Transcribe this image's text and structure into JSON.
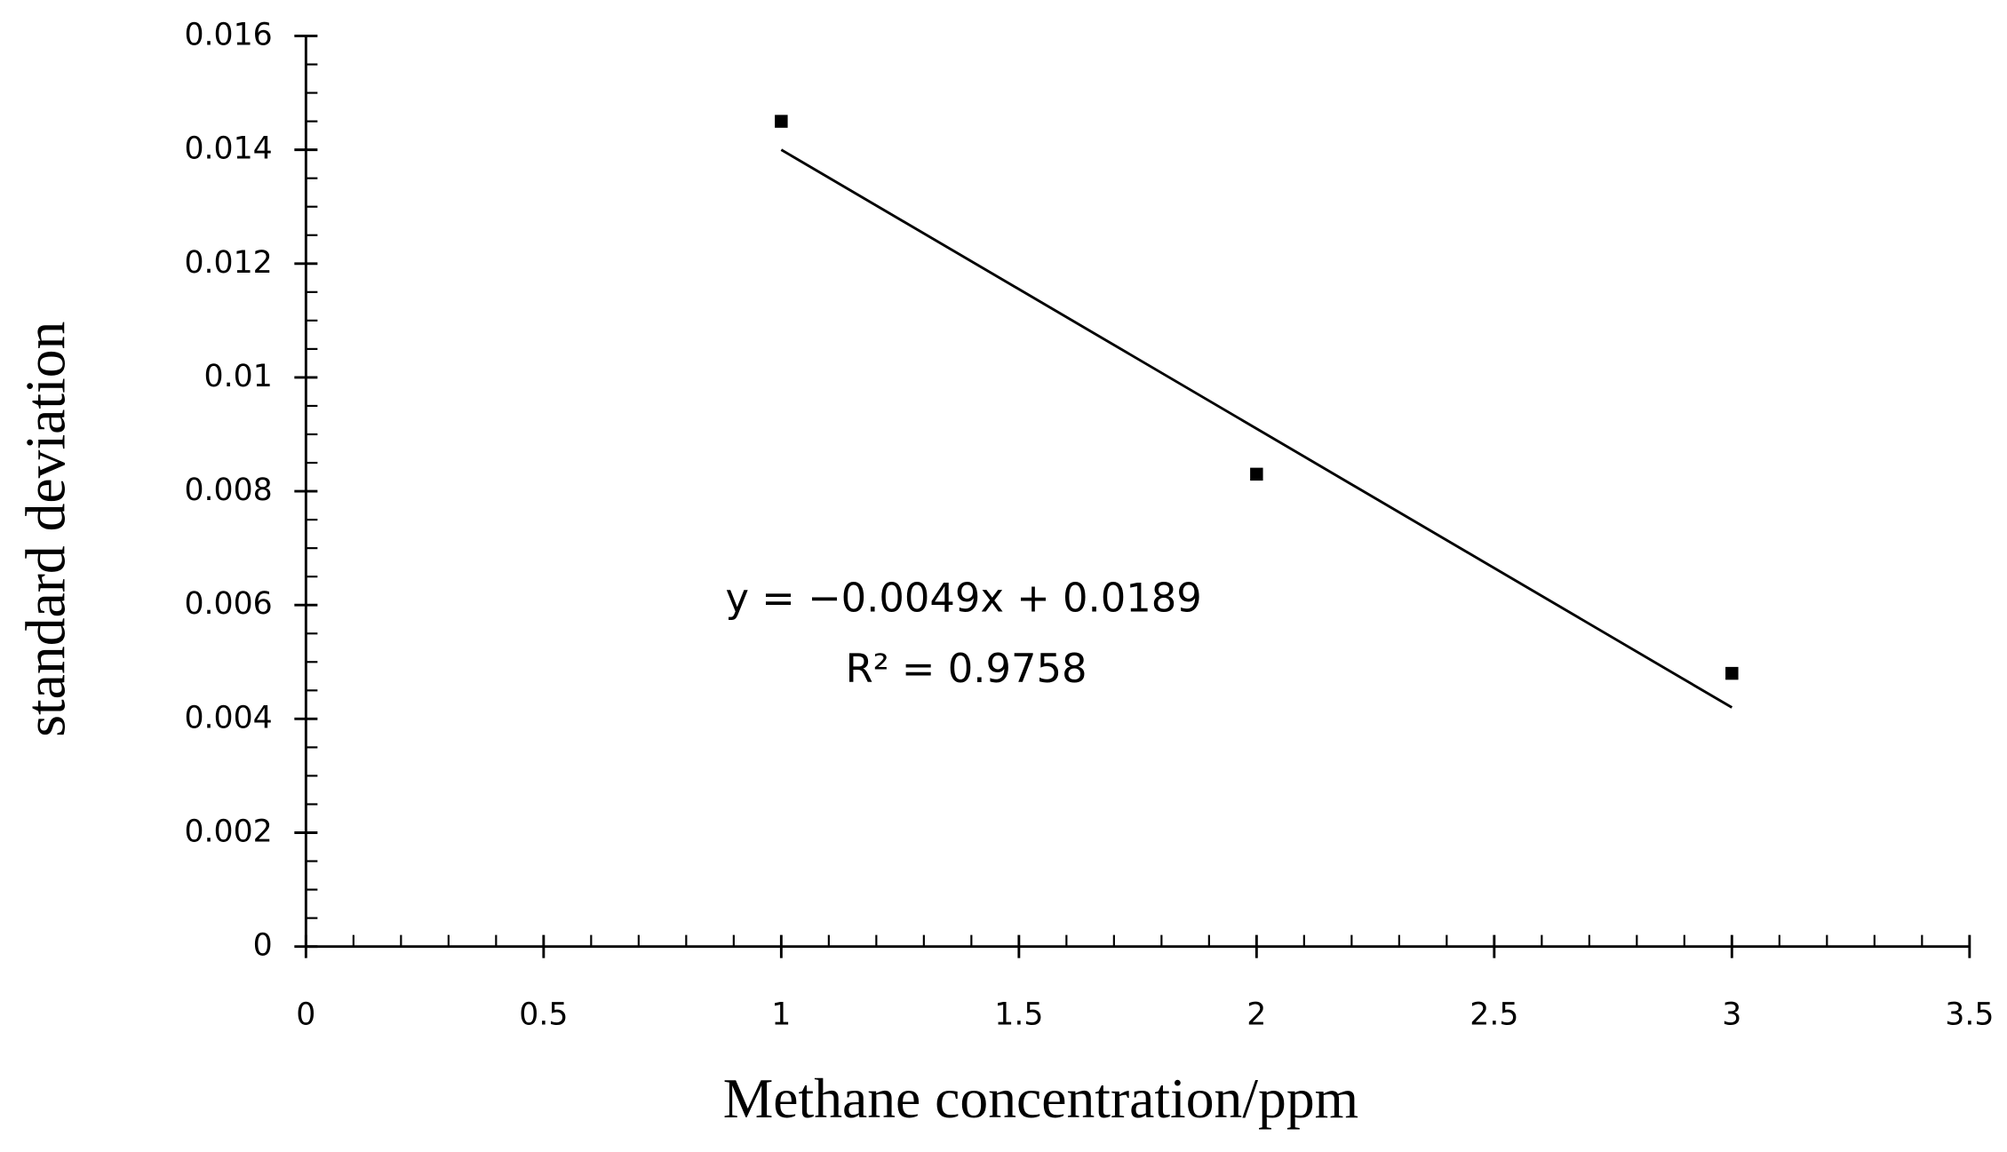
{
  "chart_data": {
    "type": "scatter",
    "x_label": "Methane concentration/ppm",
    "y_label": "standard deviation",
    "series": [
      {
        "name": "standard deviation",
        "color": "#000000",
        "x": [
          1,
          2,
          3
        ],
        "values": [
          0.0145,
          0.0083,
          0.0048
        ]
      }
    ],
    "trendline": {
      "color": "#000000",
      "x": [
        1,
        3
      ],
      "values": [
        0.014,
        0.0042
      ]
    },
    "annotations": [
      "y = −0.0049x + 0.0189",
      "R² = 0.9758"
    ],
    "xlim": [
      0,
      3.5
    ],
    "xticks": [
      0,
      0.5,
      1,
      1.5,
      2,
      2.5,
      3,
      3.5
    ],
    "ylim": [
      0,
      0.016
    ],
    "yticks": [
      0,
      0.002,
      0.004,
      0.006,
      0.008,
      0.01,
      0.012,
      0.014,
      0.016
    ],
    "grid": false
  }
}
